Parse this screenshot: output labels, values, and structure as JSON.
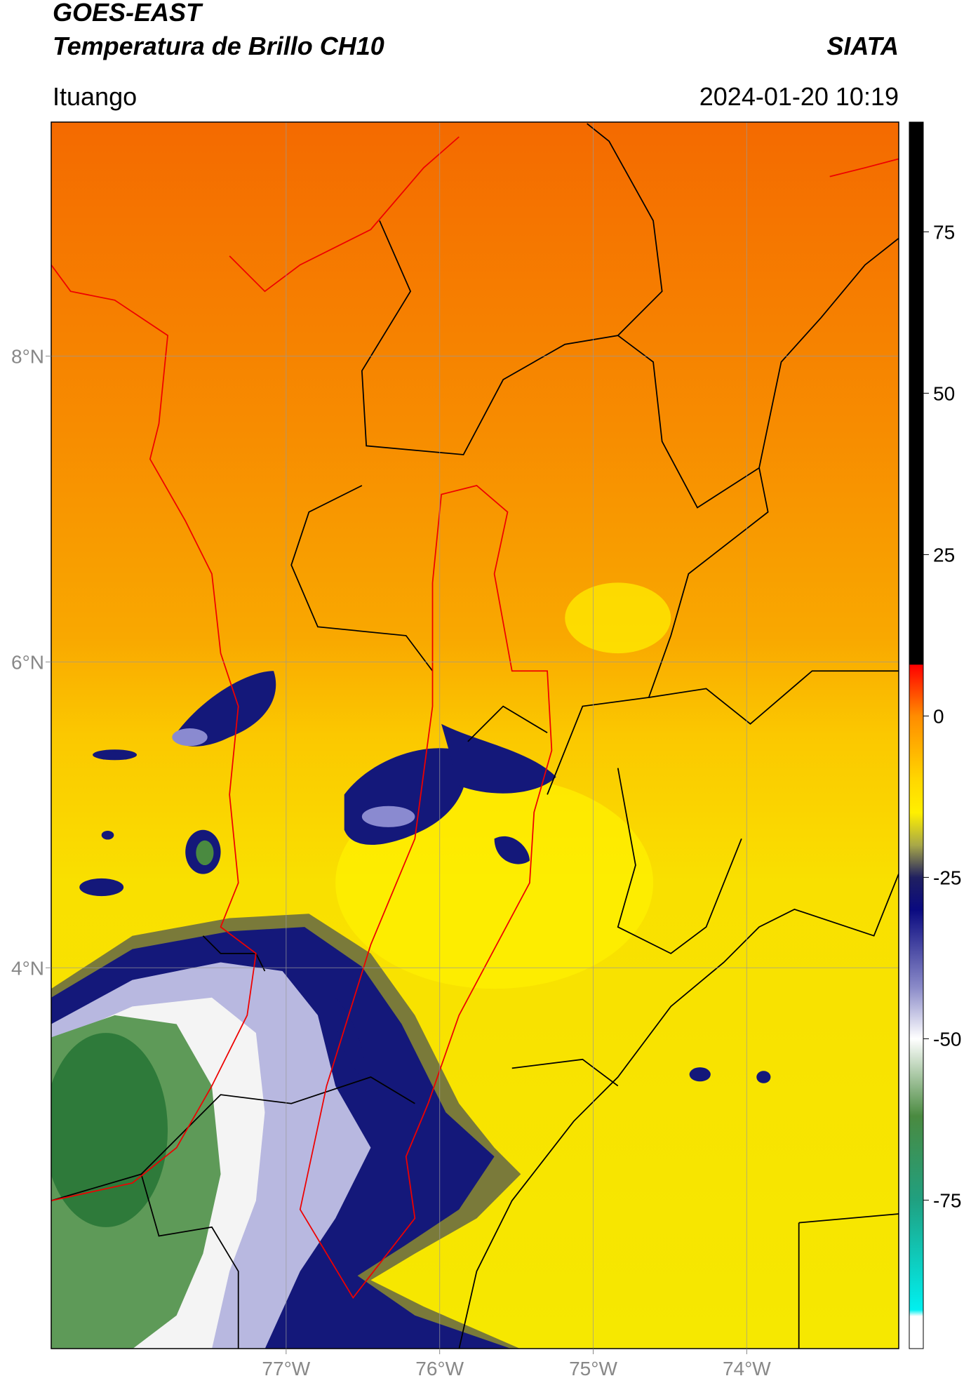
{
  "chart_data": {
    "type": "map",
    "title": "GOES-EAST",
    "subtitle": "Temperatura de Brillo CH10",
    "source": "SIATA",
    "region": "Ituango",
    "timestamp": "2024-01-20 10:19",
    "xlim": [
      -78.53,
      -73.01
    ],
    "ylim": [
      1.51,
      9.53
    ],
    "xticks": [
      {
        "value": -77,
        "label": "77°W"
      },
      {
        "value": -76,
        "label": "76°W"
      },
      {
        "value": -75,
        "label": "75°W"
      },
      {
        "value": -74,
        "label": "74°W"
      }
    ],
    "yticks": [
      {
        "value": 8,
        "label": "8°N"
      },
      {
        "value": 6,
        "label": "6°N"
      },
      {
        "value": 4,
        "label": "4°N"
      }
    ],
    "grid": true,
    "colorbar": {
      "lim": [
        -98,
        92
      ],
      "ticks": [
        75,
        50,
        25,
        0,
        -25,
        -50,
        -75
      ],
      "stops": [
        {
          "value": 92,
          "color": "#000000"
        },
        {
          "value": 8,
          "color": "#000000"
        },
        {
          "value": 7.9,
          "color": "#ff0000"
        },
        {
          "value": 0,
          "color": "#ff8c00"
        },
        {
          "value": -10,
          "color": "#ffd800"
        },
        {
          "value": -15,
          "color": "#fff000"
        },
        {
          "value": -20,
          "color": "#a8a848"
        },
        {
          "value": -25,
          "color": "#202060"
        },
        {
          "value": -30,
          "color": "#0a0a80"
        },
        {
          "value": -42,
          "color": "#8a8ac8"
        },
        {
          "value": -50,
          "color": "#ffffff"
        },
        {
          "value": -62,
          "color": "#4a8a40"
        },
        {
          "value": -75,
          "color": "#20a080"
        },
        {
          "value": -92,
          "color": "#00f0f0"
        },
        {
          "value": -93,
          "color": "#ffffff"
        },
        {
          "value": -98,
          "color": "#ffffff"
        }
      ]
    }
  }
}
